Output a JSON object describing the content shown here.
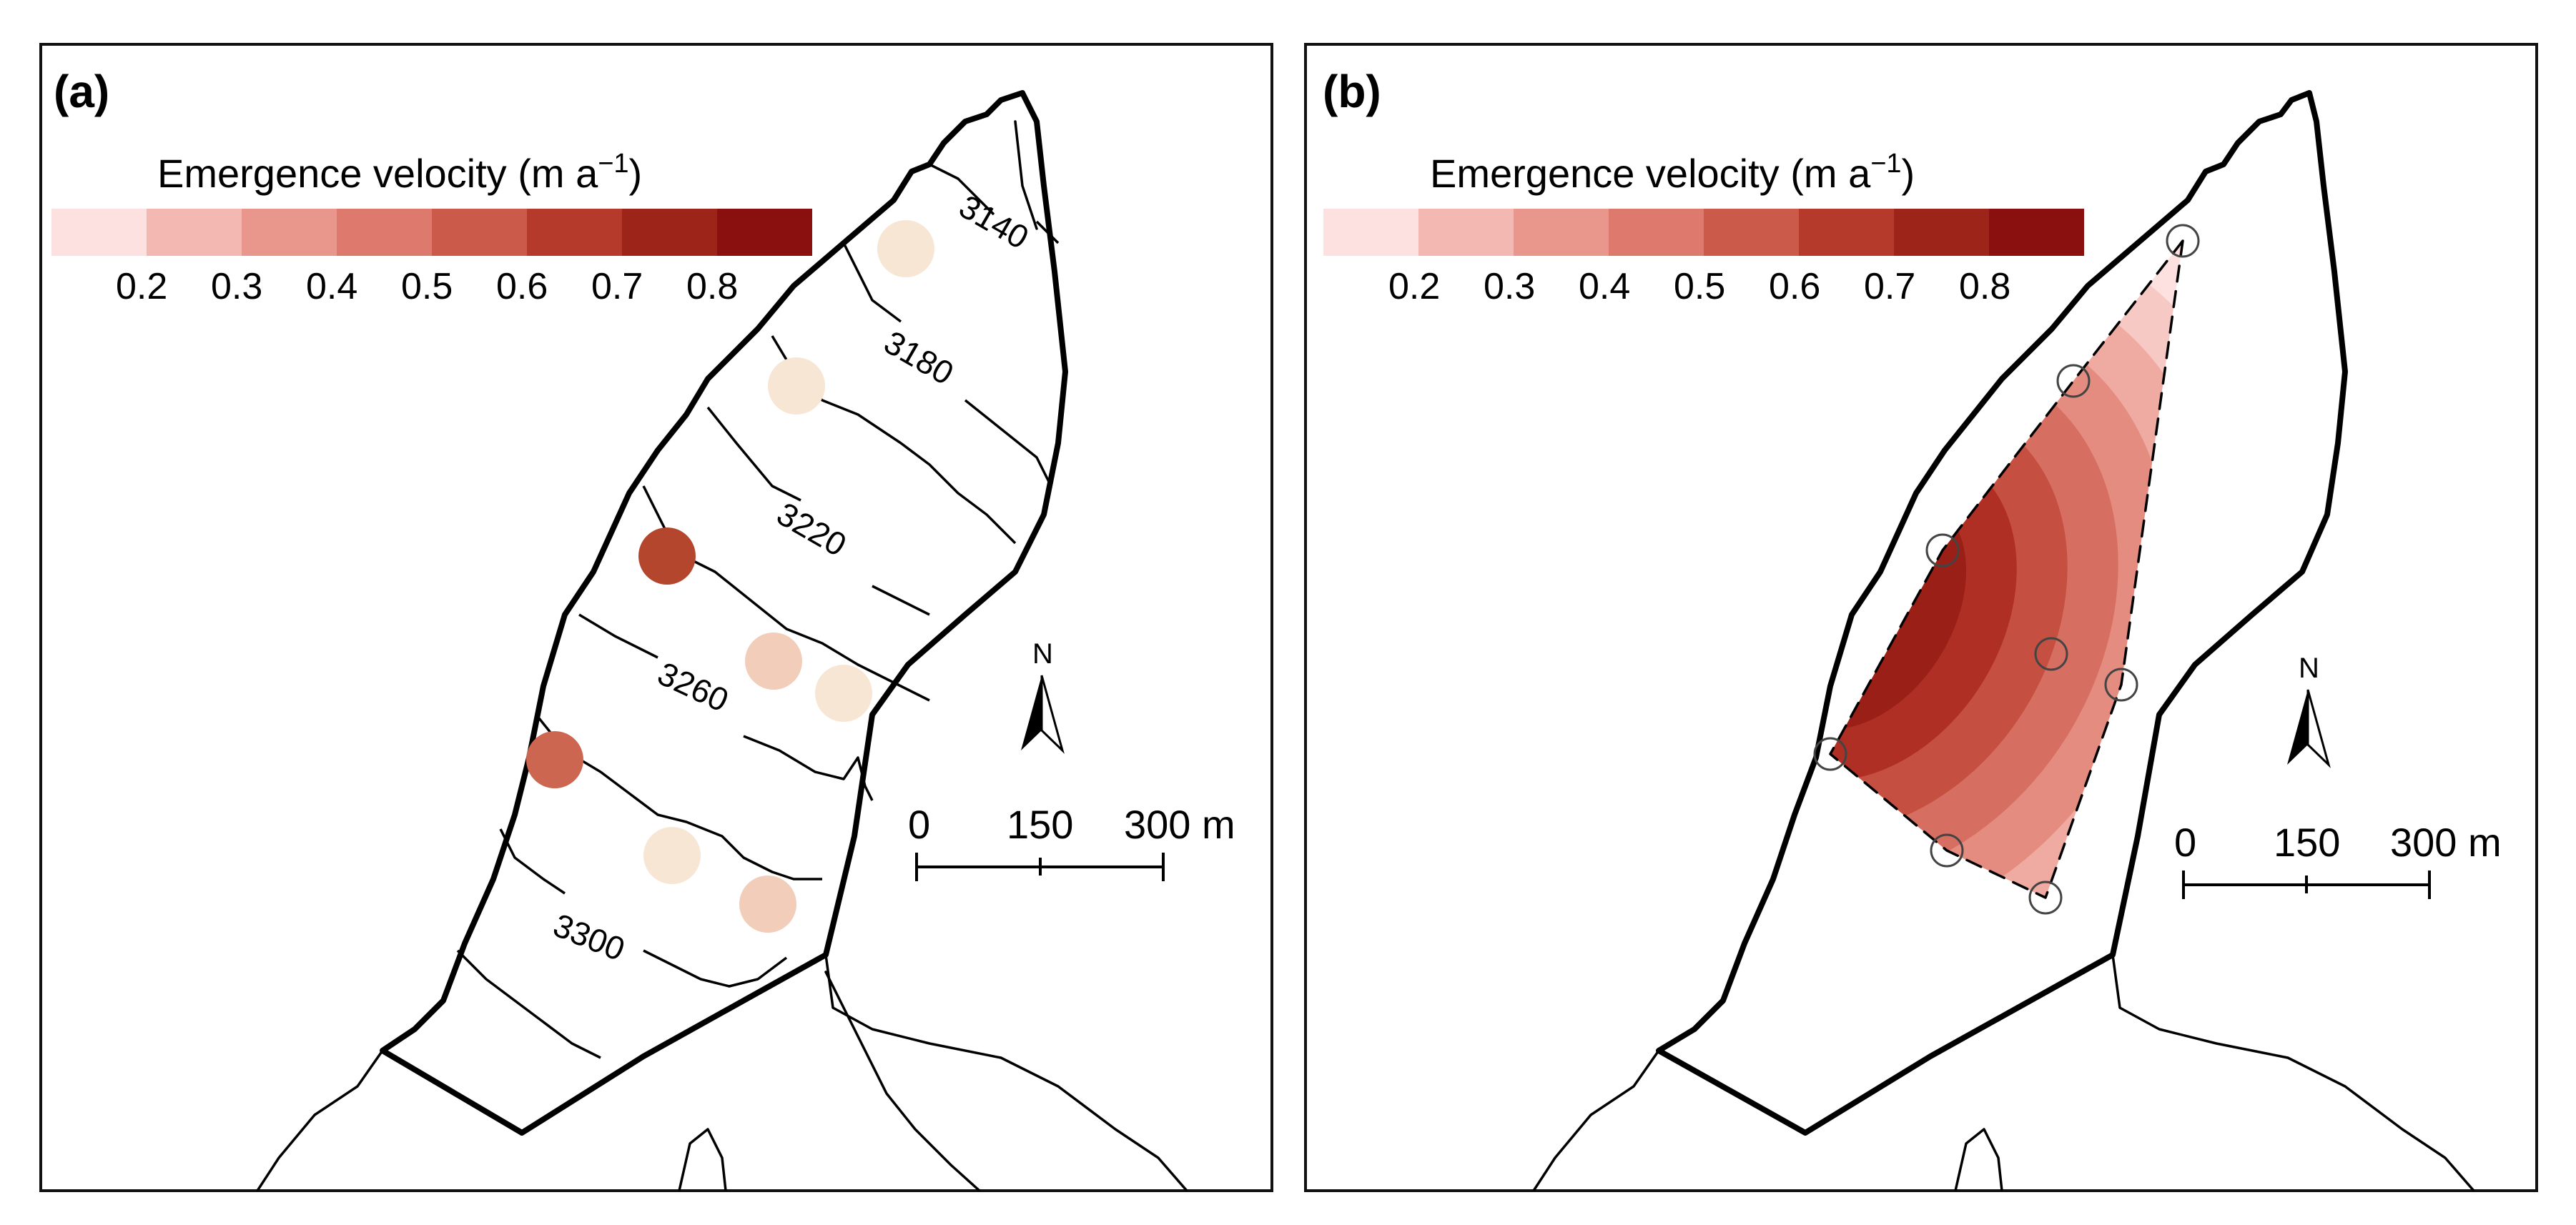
{
  "panels": [
    {
      "label": "(a)",
      "legend": {
        "title_prefix": "Emergence velocity (m a",
        "title_sup": "−1",
        "title_suffix": ")",
        "ticks": [
          "0.2",
          "0.3",
          "0.4",
          "0.5",
          "0.6",
          "0.7",
          "0.8"
        ]
      },
      "contour_labels": [
        "3140",
        "3180",
        "3220",
        "3260",
        "3300"
      ],
      "north": "N",
      "scale": [
        "0",
        "150",
        "300 m"
      ]
    },
    {
      "label": "(b)",
      "legend": {
        "title_prefix": "Emergence velocity (m a",
        "title_sup": "−1",
        "title_suffix": ")",
        "ticks": [
          "0.2",
          "0.3",
          "0.4",
          "0.5",
          "0.6",
          "0.7",
          "0.8"
        ]
      },
      "north": "N",
      "scale": [
        "0",
        "150",
        "300 m"
      ]
    }
  ],
  "legend_colors": [
    "#fde0e0",
    "#f4b8b3",
    "#e9968c",
    "#dd7a6d",
    "#cc5a4a",
    "#b53a2c",
    "#9c2418",
    "#8a0f0f"
  ],
  "stakes": [
    {
      "velocity": 0.15,
      "color": "#f7e6d4"
    },
    {
      "velocity": 0.15,
      "color": "#f7e6d4"
    },
    {
      "velocity": 0.7,
      "color": "#b5462e"
    },
    {
      "velocity": 0.2,
      "color": "#f2cdb9"
    },
    {
      "velocity": 0.15,
      "color": "#f7e6d4"
    },
    {
      "velocity": 0.55,
      "color": "#cd6651"
    },
    {
      "velocity": 0.15,
      "color": "#f7e6d4"
    },
    {
      "velocity": 0.2,
      "color": "#f2cdb9"
    }
  ],
  "contour_band_colors": [
    "#f7c9c4",
    "#efaba2",
    "#e48c80",
    "#d66f61",
    "#c54f40",
    "#b02f24",
    "#9a1f17"
  ]
}
